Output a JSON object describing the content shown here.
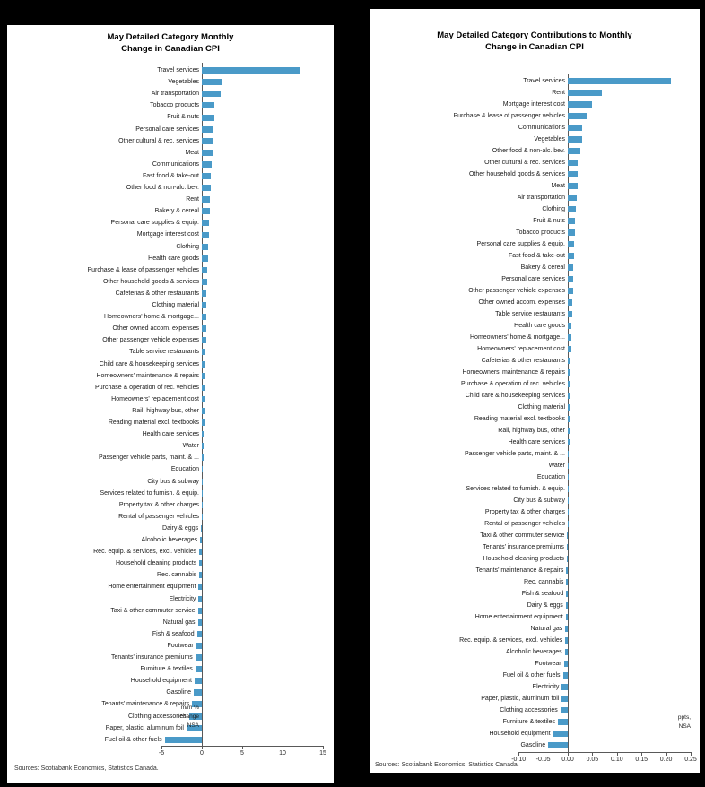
{
  "page": {
    "background_color": "#000000",
    "panel_color": "#ffffff"
  },
  "chart_data": [
    {
      "type": "bar",
      "orientation": "horizontal",
      "title": "May Detailed Category Monthly\nChange in Canadian CPI",
      "unit_note": "m/m %\nchange\nNSA",
      "source": "Sources: Scotiabank Economics, Statistics Canada.",
      "bar_color": "#4A9AC8",
      "grid": false,
      "legend": false,
      "xlim": [
        -5,
        15
      ],
      "ticks": [
        -5,
        0,
        5,
        10,
        15
      ],
      "tick_labels": [
        "-5",
        "0",
        "5",
        "10",
        "15"
      ],
      "categories": [
        "Travel services",
        "Vegetables",
        "Air transportation",
        "Tobacco products",
        "Fruit & nuts",
        "Personal care services",
        "Other cultural & rec. services",
        "Meat",
        "Communications",
        "Fast food & take-out",
        "Other food & non-alc. bev.",
        "Rent",
        "Bakery & cereal",
        "Personal care supplies & equip.",
        "Mortgage interest cost",
        "Clothing",
        "Health care goods",
        "Purchase & lease of passenger vehicles",
        "Other household goods & services",
        "Cafeterias & other restaurants",
        "Clothing material",
        "Homeowners' home & mortgage...",
        "Other owned accom. expenses",
        "Other passenger vehicle expenses",
        "Table service restaurants",
        "Child care & housekeeping services",
        "Homeowners' maintenance & repairs",
        "Purchase & operation of rec. vehicles",
        "Homeowners' replacement cost",
        "Rail, highway bus, other",
        "Reading material excl. textbooks",
        "Health care services",
        "Water",
        "Passenger vehicle parts, maint. & ...",
        "Education",
        "City bus & subway",
        "Services related to furnish. & equip.",
        "Property tax & other charges",
        "Rental of passenger vehicles",
        "Dairy & eggs",
        "Alcoholic beverages",
        "Rec. equip. & services, excl. vehicles",
        "Household cleaning products",
        "Rec. cannabis",
        "Home entertainment equipment",
        "Electricity",
        "Taxi & other commuter service",
        "Natural gas",
        "Fish & seafood",
        "Footwear",
        "Tenants' insurance premiums",
        "Furniture & textiles",
        "Household equipment",
        "Gasoline",
        "Tenants' maintenance & repairs",
        "Clothing accessories",
        "Paper, plastic, aluminum foil",
        "Fuel oil & other fuels"
      ],
      "values": [
        12.1,
        2.6,
        2.3,
        1.6,
        1.5,
        1.4,
        1.4,
        1.3,
        1.2,
        1.1,
        1.1,
        1.0,
        1.0,
        0.9,
        0.9,
        0.8,
        0.8,
        0.7,
        0.7,
        0.6,
        0.6,
        0.5,
        0.5,
        0.5,
        0.4,
        0.4,
        0.4,
        0.3,
        0.3,
        0.3,
        0.3,
        0.2,
        0.2,
        0.2,
        0.1,
        0.1,
        0.1,
        0.05,
        0.05,
        -0.1,
        -0.2,
        -0.3,
        -0.3,
        -0.3,
        -0.4,
        -0.4,
        -0.5,
        -0.5,
        -0.6,
        -0.7,
        -0.8,
        -0.8,
        -0.9,
        -1.0,
        -1.2,
        -1.6,
        -1.9,
        -4.6
      ]
    },
    {
      "type": "bar",
      "orientation": "horizontal",
      "title": "May Detailed Category Contributions to Monthly\nChange in Canadian CPI",
      "unit_note": "ppts,\nNSA",
      "source": "Sources: Scotiabank Economics, Statistics Canada.",
      "bar_color": "#4A9AC8",
      "grid": false,
      "legend": false,
      "xlim": [
        -0.1,
        0.25
      ],
      "ticks": [
        -0.1,
        -0.05,
        0,
        0.05,
        0.1,
        0.15,
        0.2,
        0.25
      ],
      "tick_labels": [
        "-0.10",
        "-0.05",
        "0.00",
        "0.05",
        "0.10",
        "0.15",
        "0.20",
        "0.25"
      ],
      "categories": [
        "Travel services",
        "Rent",
        "Mortgage interest cost",
        "Purchase & lease of passenger vehicles",
        "Communications",
        "Vegetables",
        "Other food & non-alc. bev.",
        "Other cultural & rec. services",
        "Other household goods & services",
        "Meat",
        "Air transportation",
        "Clothing",
        "Fruit & nuts",
        "Tobacco products",
        "Personal care supplies & equip.",
        "Fast food & take-out",
        "Bakery & cereal",
        "Personal care services",
        "Other passenger vehicle expenses",
        "Other owned accom. expenses",
        "Table service restaurants",
        "Health care goods",
        "Homeowners' home & mortgage...",
        "Homeowners' replacement cost",
        "Cafeterias & other restaurants",
        "Homeowners' maintenance & repairs",
        "Purchase & operation of rec. vehicles",
        "Child care & housekeeping services",
        "Clothing material",
        "Reading material excl. textbooks",
        "Rail, highway bus, other",
        "Health care services",
        "Passenger vehicle parts, maint. & ...",
        "Water",
        "Education",
        "Services related to furnish. & equip.",
        "City bus & subway",
        "Property tax & other charges",
        "Rental of passenger vehicles",
        "Taxi & other commuter service",
        "Tenants' insurance premiums",
        "Household cleaning products",
        "Tenants' maintenance & repairs",
        "Rec. cannabis",
        "Fish & seafood",
        "Dairy & eggs",
        "Home entertainment equipment",
        "Natural gas",
        "Rec. equip. & services, excl. vehicles",
        "Alcoholic beverages",
        "Footwear",
        "Fuel oil & other fuels",
        "Electricity",
        "Paper, plastic, aluminum foil",
        "Clothing accessories",
        "Furniture & textiles",
        "Household equipment",
        "Gasoline"
      ],
      "values": [
        0.21,
        0.07,
        0.05,
        0.04,
        0.03,
        0.03,
        0.025,
        0.02,
        0.02,
        0.02,
        0.018,
        0.016,
        0.015,
        0.014,
        0.012,
        0.012,
        0.011,
        0.01,
        0.01,
        0.009,
        0.009,
        0.008,
        0.008,
        0.007,
        0.006,
        0.005,
        0.005,
        0.004,
        0.004,
        0.003,
        0.003,
        0.003,
        0.002,
        0.002,
        0.002,
        0.001,
        0.001,
        0.001,
        0.0005,
        -0.001,
        -0.002,
        -0.002,
        -0.003,
        -0.003,
        -0.003,
        -0.004,
        -0.004,
        -0.005,
        -0.005,
        -0.006,
        -0.008,
        -0.01,
        -0.012,
        -0.012,
        -0.015,
        -0.02,
        -0.03,
        -0.04
      ]
    }
  ]
}
